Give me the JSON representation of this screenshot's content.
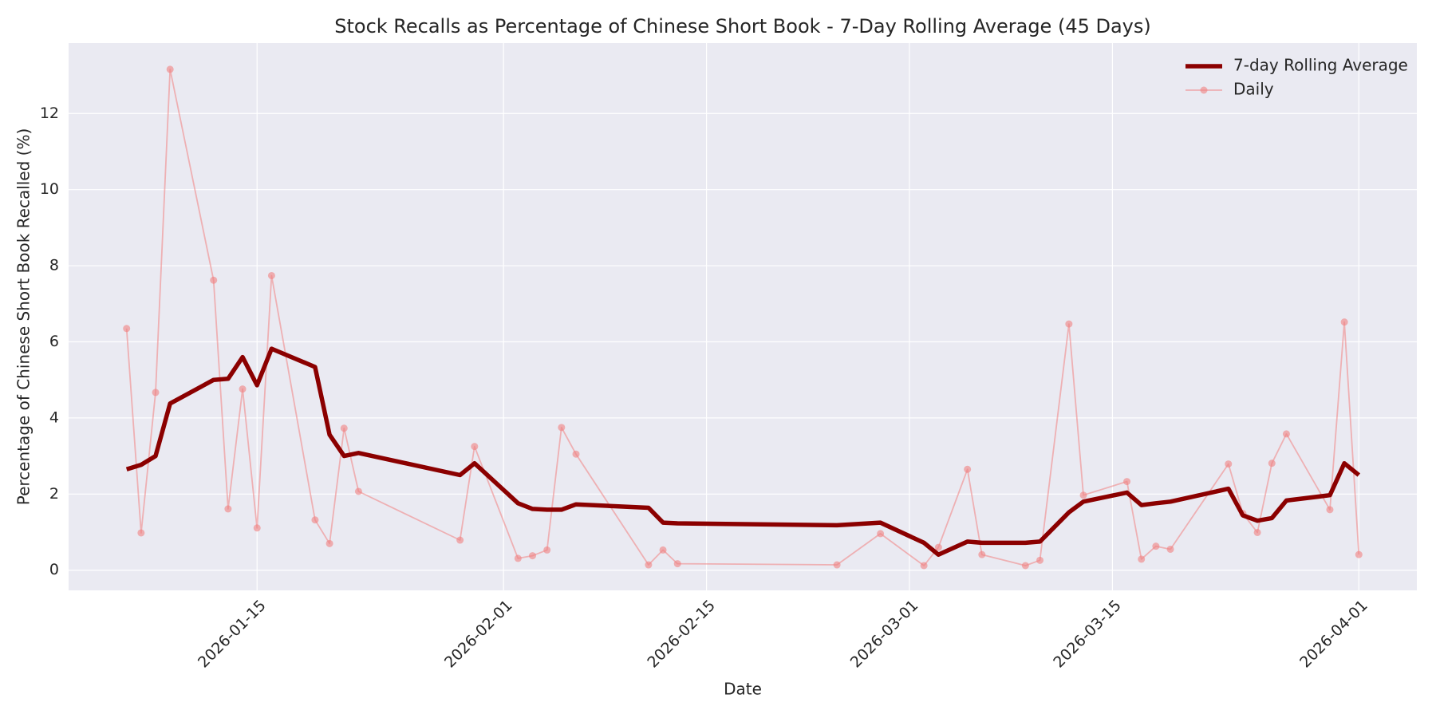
{
  "chart_data": {
    "type": "line",
    "title": "Stock Recalls as Percentage of Chinese Short Book - 7-Day Rolling Average (45 Days)",
    "xlabel": "Date",
    "ylabel": "Percentage of Chinese Short Book Recalled (%)",
    "x": [
      "2026-01-06",
      "2026-01-07",
      "2026-01-08",
      "2026-01-09",
      "2026-01-12",
      "2026-01-13",
      "2026-01-14",
      "2026-01-15",
      "2026-01-16",
      "2026-01-19",
      "2026-01-20",
      "2026-01-21",
      "2026-01-22",
      "2026-01-29",
      "2026-01-30",
      "2026-02-02",
      "2026-02-03",
      "2026-02-04",
      "2026-02-05",
      "2026-02-06",
      "2026-02-11",
      "2026-02-12",
      "2026-02-13",
      "2026-02-24",
      "2026-02-27",
      "2026-03-02",
      "2026-03-03",
      "2026-03-05",
      "2026-03-06",
      "2026-03-09",
      "2026-03-10",
      "2026-03-12",
      "2026-03-13",
      "2026-03-16",
      "2026-03-17",
      "2026-03-18",
      "2026-03-19",
      "2026-03-23",
      "2026-03-24",
      "2026-03-25",
      "2026-03-26",
      "2026-03-27",
      "2026-03-30",
      "2026-03-31",
      "2026-04-01"
    ],
    "series": [
      {
        "name": "7-day Rolling Average",
        "color": "#8b0000",
        "markers": false,
        "values": [
          2.65,
          2.77,
          3.0,
          4.38,
          5.0,
          5.03,
          5.6,
          4.86,
          5.82,
          5.34,
          3.56,
          3.0,
          3.08,
          2.5,
          2.81,
          1.76,
          1.61,
          1.59,
          1.59,
          1.73,
          1.64,
          1.25,
          1.23,
          1.18,
          1.25,
          0.72,
          0.41,
          0.75,
          0.72,
          0.72,
          0.75,
          1.52,
          1.8,
          2.04,
          1.71,
          1.76,
          1.8,
          2.14,
          1.44,
          1.3,
          1.37,
          1.83,
          1.97,
          2.81,
          2.5
        ]
      },
      {
        "name": "Daily",
        "color": "#f08080",
        "markers": true,
        "values": [
          6.35,
          0.98,
          4.67,
          13.16,
          7.62,
          1.61,
          4.76,
          1.11,
          7.74,
          1.32,
          0.7,
          3.73,
          2.07,
          0.79,
          3.25,
          0.31,
          0.38,
          0.53,
          3.75,
          3.05,
          0.14,
          0.53,
          0.17,
          0.14,
          0.96,
          0.12,
          0.6,
          2.65,
          0.41,
          0.12,
          0.26,
          6.47,
          1.97,
          2.33,
          0.29,
          0.63,
          0.55,
          2.79,
          1.49,
          0.99,
          2.81,
          3.58,
          1.59,
          6.52,
          0.41
        ]
      }
    ],
    "xlim": [
      "2026-01-02",
      "2026-04-05"
    ],
    "xticks": [
      "2026-01-15",
      "2026-02-01",
      "2026-02-15",
      "2026-03-01",
      "2026-03-15",
      "2026-04-01"
    ],
    "ylim": [
      -0.53,
      13.85
    ],
    "yticks": [
      0,
      2,
      4,
      6,
      8,
      10,
      12
    ],
    "grid": true,
    "legend": "upper right"
  }
}
